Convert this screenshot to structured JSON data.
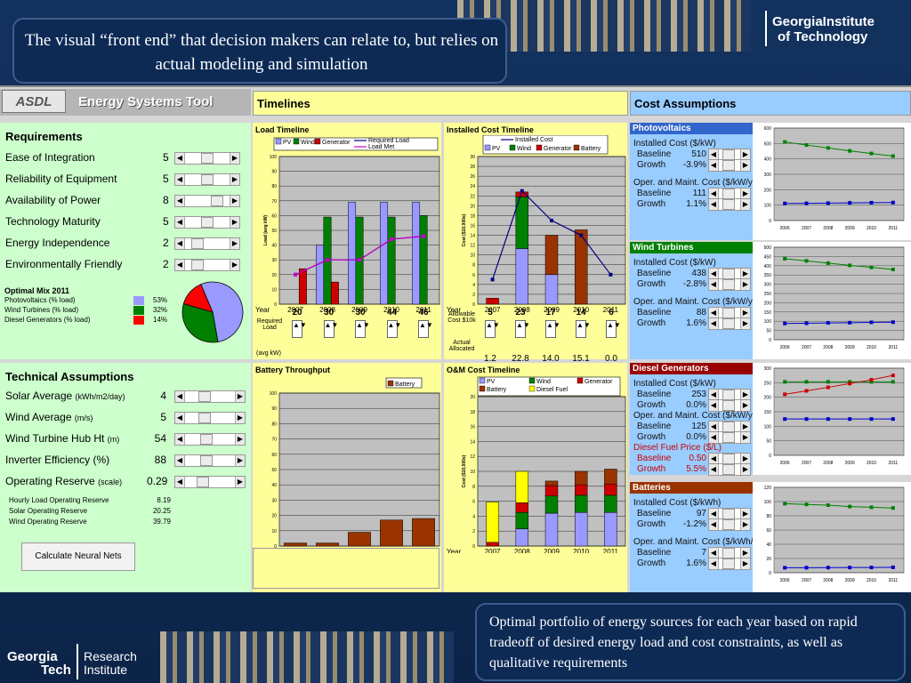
{
  "slide": {
    "top_callout": "The visual “front end” that decision makers can relate to, but relies on actual modeling and simulation",
    "bottom_callout": "Optimal portfolio of energy sources for each year based on rapid tradeoff of desired energy load and cost constraints, as well as qualitative requirements",
    "logo_top_line1": "GeorgiaInstitute",
    "logo_top_line2": "of Technology",
    "logo_bottom_line1": "Georgia",
    "logo_bottom_line2": "Tech",
    "logo_bottom_line3": "Research",
    "logo_bottom_line4": "Institute"
  },
  "app": {
    "logo_text": "ASDL",
    "title": "Energy Systems Tool",
    "timelines_header": "Timelines",
    "cost_header": "Cost Assumptions",
    "requirements": {
      "title": "Requirements",
      "items": [
        {
          "label": "Ease of Integration",
          "value": "5",
          "level": 0.5
        },
        {
          "label": "Reliability of Equipment",
          "value": "5",
          "level": 0.5
        },
        {
          "label": "Availability of Power",
          "value": "8",
          "level": 0.8
        },
        {
          "label": "Technology Maturity",
          "value": "5",
          "level": 0.5
        },
        {
          "label": "Energy Independence",
          "value": "2",
          "level": 0.2
        },
        {
          "label": "Environmentally Friendly",
          "value": "2",
          "level": 0.2
        }
      ]
    },
    "optimal_mix": {
      "title": "Optimal Mix 2011",
      "items": [
        {
          "label": "Photovoltaics (% load)",
          "value": "53%",
          "color": "#9999ff"
        },
        {
          "label": "Wind Turbines (% load)",
          "value": "32%",
          "color": "#008000"
        },
        {
          "label": "Diesel Generators (% load)",
          "value": "14%",
          "color": "#ff0000"
        }
      ]
    },
    "technical": {
      "title": "Technical Assumptions",
      "items": [
        {
          "label": "Solar Average",
          "unit": "(kWh/m2/day)",
          "value": "4",
          "level": 0.35
        },
        {
          "label": "Wind Average",
          "unit": "(m/s)",
          "value": "5",
          "level": 0.35
        },
        {
          "label": "Wind Turbine Hub Ht",
          "unit": "(m)",
          "value": "54",
          "level": 0.4
        },
        {
          "label": "Inverter Efficiency (%)",
          "unit": "",
          "value": "88",
          "level": 0.4
        },
        {
          "label": "Operating Reserve",
          "unit": "(scale)",
          "value": "0.29",
          "level": 0.3
        }
      ],
      "reserves": [
        {
          "label": "Hourly Load Operating Reserve",
          "value": "8.19"
        },
        {
          "label": "Solar Operating Reserve",
          "value": "20.25"
        },
        {
          "label": "Wind Operating Reserve",
          "value": "39.79"
        }
      ],
      "button": "Calculate Neural Nets"
    },
    "load_timeline": {
      "title": "Load Timeline",
      "legend": [
        "PV",
        "Wind",
        "Generator",
        "Required Load",
        "Load Met"
      ],
      "required_label": "Required Load",
      "unit_label": "(avg kW)",
      "year_label": "Year",
      "inputs": [
        "20",
        "30",
        "30",
        "44",
        "46"
      ]
    },
    "installed_timeline": {
      "title": "Installed Cost Timeline",
      "legend": [
        "Installed Cost",
        "PV",
        "Wind",
        "Generator",
        "Battery"
      ],
      "allowable_label": "Allowable Cost $10k",
      "actual_label": "Actual Allocated",
      "year_label": "Year",
      "inputs": [
        "5",
        "23",
        "17",
        "14",
        "6"
      ],
      "actual": [
        "1.2",
        "22.8",
        "14.0",
        "15.1",
        "0.0"
      ]
    },
    "battery_chart": {
      "title": "Battery Throughput",
      "legend": [
        "Battery"
      ],
      "year_label": "Year"
    },
    "om_chart": {
      "title": "O&M Cost Timeline",
      "legend": [
        "PV",
        "Wind",
        "Generator",
        "Battery",
        "Diesel Fuel"
      ],
      "year_label": "Year"
    },
    "cost_sections": [
      {
        "title": "Photovoltaics",
        "color": "#3366cc",
        "rows": [
          {
            "label": "Installed Cost ($/kW)",
            "type": "head"
          },
          {
            "label": "Baseline",
            "value": "510",
            "type": "row"
          },
          {
            "label": "Growth",
            "value": "-3.9%",
            "type": "row"
          },
          {
            "label": "Oper. and Maint. Cost ($/kW/yr)",
            "type": "head"
          },
          {
            "label": "Baseline",
            "value": "111",
            "type": "row"
          },
          {
            "label": "Growth",
            "value": "1.1%",
            "type": "row"
          }
        ]
      },
      {
        "title": "Wind Turbines",
        "color": "#008000",
        "rows": [
          {
            "label": "Installed Cost ($/kW)",
            "type": "head"
          },
          {
            "label": "Baseline",
            "value": "438",
            "type": "row"
          },
          {
            "label": "Growth",
            "value": "-2.8%",
            "type": "row"
          },
          {
            "label": "Oper. and Maint. Cost ($/kW/yr)",
            "type": "head"
          },
          {
            "label": "Baseline",
            "value": "88",
            "type": "row"
          },
          {
            "label": "Growth",
            "value": "1.6%",
            "type": "row"
          }
        ]
      },
      {
        "title": "Diesel Generators",
        "color": "#990000",
        "rows": [
          {
            "label": "Installed Cost ($/kW)",
            "type": "head"
          },
          {
            "label": "Baseline",
            "value": "253",
            "type": "row"
          },
          {
            "label": "Growth",
            "value": "0.0%",
            "type": "row"
          },
          {
            "label": "Oper. and Maint. Cost ($/kW/yr)",
            "type": "head"
          },
          {
            "label": "Baseline",
            "value": "125",
            "type": "row"
          },
          {
            "label": "Growth",
            "value": "0.0%",
            "type": "row"
          },
          {
            "label": "Diesel Fuel Price ($/L)",
            "type": "headred"
          },
          {
            "label": "Baseline",
            "value": "0.50",
            "type": "rowred"
          },
          {
            "label": "Growth",
            "value": "5.5%",
            "type": "rowred"
          }
        ]
      },
      {
        "title": "Batteries",
        "color": "#993300",
        "rows": [
          {
            "label": "Installed Cost ($/kWh)",
            "type": "head"
          },
          {
            "label": "Baseline",
            "value": "97",
            "type": "row"
          },
          {
            "label": "Growth",
            "value": "-1.2%",
            "type": "row"
          },
          {
            "label": "Oper. and Maint. Cost ($/kWh/yr)",
            "type": "head"
          },
          {
            "label": "Baseline",
            "value": "7",
            "type": "row"
          },
          {
            "label": "Growth",
            "value": "1.6%",
            "type": "row"
          }
        ]
      }
    ]
  },
  "chart_data": [
    {
      "type": "bar",
      "title": "Load Timeline",
      "ylabel": "Load (avg kW)",
      "ylim": [
        0,
        100
      ],
      "categories": [
        "2007",
        "2008",
        "2009",
        "2010",
        "2011"
      ],
      "series": [
        {
          "name": "PV",
          "values": [
            0,
            40,
            69,
            69,
            69
          ],
          "color": "#9999ff"
        },
        {
          "name": "Wind",
          "values": [
            0,
            59,
            59,
            59,
            60
          ],
          "color": "#008000"
        },
        {
          "name": "Generator",
          "values": [
            24,
            15,
            0,
            0,
            0
          ],
          "color": "#cc0000"
        }
      ],
      "lines": [
        {
          "name": "Required Load",
          "values": [
            20,
            30,
            30,
            44,
            46
          ],
          "color": "#000080"
        },
        {
          "name": "Load Met",
          "values": [
            20,
            30,
            30,
            44,
            46
          ],
          "color": "#cc00cc"
        }
      ]
    },
    {
      "type": "bar",
      "stacked": true,
      "title": "Installed Cost Timeline",
      "ylabel": "Cost ($10,000s)",
      "ylim": [
        0,
        30
      ],
      "categories": [
        "2007",
        "2008",
        "2009",
        "2010",
        "2011"
      ],
      "series": [
        {
          "name": "PV",
          "values": [
            0,
            11.3,
            6.0,
            0,
            0
          ],
          "color": "#9999ff"
        },
        {
          "name": "Wind",
          "values": [
            0,
            10.5,
            0,
            0,
            0
          ],
          "color": "#008000"
        },
        {
          "name": "Generator",
          "values": [
            1.2,
            1.0,
            0,
            0,
            0
          ],
          "color": "#cc0000"
        },
        {
          "name": "Battery",
          "values": [
            0,
            0,
            8.0,
            15.1,
            0
          ],
          "color": "#993300"
        }
      ],
      "lines": [
        {
          "name": "Installed Cost",
          "values": [
            5,
            23,
            17,
            14,
            6
          ],
          "color": "#000080"
        }
      ]
    },
    {
      "type": "bar",
      "title": "Battery Throughput",
      "ylim": [
        0,
        100
      ],
      "categories": [
        "2007",
        "2008",
        "2009",
        "2010",
        "2011"
      ],
      "series": [
        {
          "name": "Battery",
          "values": [
            2,
            2,
            9,
            17,
            18
          ],
          "color": "#993300"
        }
      ]
    },
    {
      "type": "bar",
      "stacked": true,
      "title": "O&M Cost Timeline",
      "ylabel": "Cost ($10,000s)",
      "ylim": [
        0,
        20
      ],
      "categories": [
        "2007",
        "2008",
        "2009",
        "2010",
        "2011"
      ],
      "series": [
        {
          "name": "PV",
          "values": [
            0,
            2.3,
            4.4,
            4.5,
            4.5
          ],
          "color": "#9999ff"
        },
        {
          "name": "Wind",
          "values": [
            0,
            2.2,
            2.3,
            2.3,
            2.3
          ],
          "color": "#008000"
        },
        {
          "name": "Generator",
          "values": [
            0.5,
            1.3,
            1.4,
            1.4,
            1.5
          ],
          "color": "#cc0000"
        },
        {
          "name": "Battery",
          "values": [
            0,
            0,
            0.6,
            1.8,
            2.0
          ],
          "color": "#993300"
        },
        {
          "name": "Diesel Fuel",
          "values": [
            5.4,
            4.2,
            0,
            0,
            0
          ],
          "color": "#ffff00"
        }
      ]
    },
    {
      "type": "pie",
      "title": "Optimal Mix 2011",
      "categories": [
        "Photovoltaics",
        "Wind Turbines",
        "Diesel Generators"
      ],
      "values": [
        53,
        32,
        14
      ]
    },
    {
      "type": "line",
      "title": "Photovoltaics cost",
      "categories": [
        "2006",
        "2007",
        "2008",
        "2009",
        "2010",
        "2011"
      ],
      "ylim": [
        0,
        600
      ],
      "series": [
        {
          "name": "Installed",
          "values": [
            510,
            490,
            471,
            452,
            435,
            418
          ],
          "color": "#008000"
        },
        {
          "name": "O&M",
          "values": [
            111,
            112,
            113,
            115,
            116,
            117
          ],
          "color": "#0000cc"
        }
      ]
    },
    {
      "type": "line",
      "title": "Wind Turbines cost",
      "categories": [
        "2006",
        "2007",
        "2008",
        "2009",
        "2010",
        "2011"
      ],
      "ylim": [
        0,
        500
      ],
      "series": [
        {
          "name": "Installed",
          "values": [
            438,
            426,
            414,
            402,
            391,
            380
          ],
          "color": "#008000"
        },
        {
          "name": "O&M",
          "values": [
            88,
            89,
            91,
            92,
            94,
            95
          ],
          "color": "#0000cc"
        }
      ]
    },
    {
      "type": "line",
      "title": "Diesel Generators cost",
      "categories": [
        "2006",
        "2007",
        "2008",
        "2009",
        "2010",
        "2011"
      ],
      "ylim": [
        0,
        300
      ],
      "series": [
        {
          "name": "Installed",
          "values": [
            253,
            253,
            253,
            253,
            253,
            253
          ],
          "color": "#008000"
        },
        {
          "name": "O&M",
          "values": [
            125,
            125,
            125,
            125,
            125,
            125
          ],
          "color": "#0000cc"
        },
        {
          "name": "Fuel",
          "values": [
            210,
            222,
            234,
            247,
            260,
            275
          ],
          "color": "#cc0000"
        }
      ]
    },
    {
      "type": "line",
      "title": "Batteries cost",
      "categories": [
        "2006",
        "2007",
        "2008",
        "2009",
        "2010",
        "2011"
      ],
      "ylim": [
        0,
        120
      ],
      "series": [
        {
          "name": "Installed",
          "values": [
            97,
            96,
            95,
            93,
            92,
            91
          ],
          "color": "#008000"
        },
        {
          "name": "O&M",
          "values": [
            7,
            7.1,
            7.2,
            7.3,
            7.4,
            7.6
          ],
          "color": "#0000cc"
        }
      ]
    }
  ]
}
